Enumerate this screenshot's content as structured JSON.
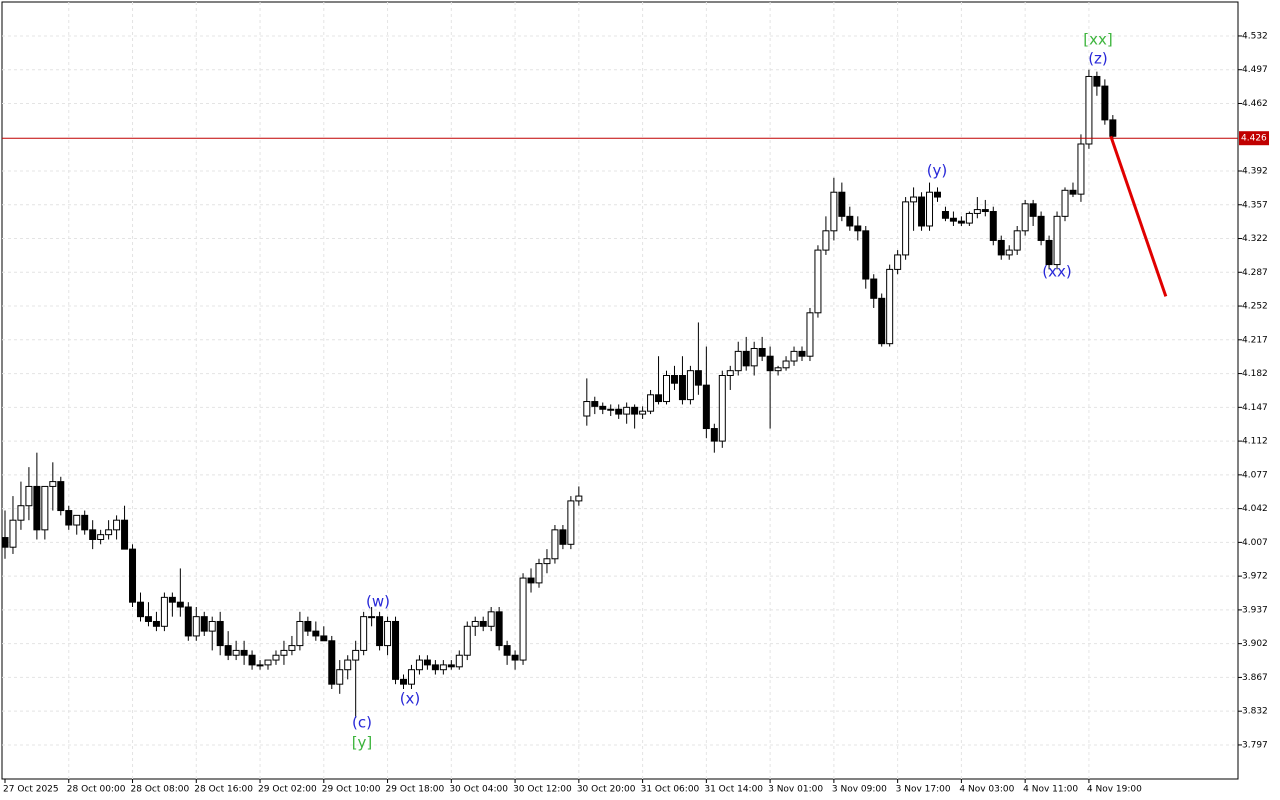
{
  "chart_data": {
    "type": "candlestick",
    "categories": [
      "27 Oct 2025",
      null,
      null,
      null,
      null,
      null,
      null,
      null,
      "28 Oct 00:00",
      null,
      null,
      null,
      null,
      null,
      null,
      null,
      "28 Oct 08:00",
      null,
      null,
      null,
      null,
      null,
      null,
      null,
      "28 Oct 16:00",
      null,
      null,
      null,
      null,
      null,
      null,
      null,
      "29 Oct 02:00",
      null,
      null,
      null,
      null,
      null,
      null,
      null,
      "29 Oct 10:00",
      null,
      null,
      null,
      null,
      null,
      null,
      null,
      "29 Oct 18:00",
      null,
      null,
      null,
      null,
      null,
      null,
      null,
      "30 Oct 04:00",
      null,
      null,
      null,
      null,
      null,
      null,
      null,
      "30 Oct 12:00",
      null,
      null,
      null,
      null,
      null,
      null,
      null,
      "30 Oct 20:00",
      null,
      null,
      null,
      null,
      null,
      null,
      null,
      "31 Oct 06:00",
      null,
      null,
      null,
      null,
      null,
      null,
      null,
      "31 Oct 14:00",
      null,
      null,
      null,
      null,
      null,
      null,
      null,
      "3 Nov 01:00",
      null,
      null,
      null,
      null,
      null,
      null,
      null,
      "3 Nov 09:00",
      null,
      null,
      null,
      null,
      null,
      null,
      null,
      "3 Nov 17:00",
      null,
      null,
      null,
      null,
      null,
      null,
      null,
      "4 Nov 03:00",
      null,
      null,
      null,
      null,
      null,
      null,
      null,
      "4 Nov 11:00",
      null,
      null,
      null,
      null,
      null,
      null,
      null,
      "4 Nov 19:00",
      null,
      null,
      null
    ],
    "open": [
      4.012,
      4.002,
      4.03,
      4.045,
      4.065,
      4.02,
      4.065,
      4.07,
      4.04,
      4.025,
      4.035,
      4.02,
      4.01,
      4.015,
      4.02,
      4.03,
      4.0,
      3.945,
      3.93,
      3.925,
      3.92,
      3.95,
      3.945,
      3.94,
      3.91,
      3.93,
      3.915,
      3.925,
      3.9,
      3.89,
      3.895,
      3.89,
      3.88,
      3.88,
      3.885,
      3.89,
      3.895,
      3.9,
      3.925,
      3.915,
      3.91,
      3.905,
      3.86,
      3.875,
      3.885,
      3.895,
      3.93,
      3.93,
      3.9,
      3.925,
      3.865,
      3.86,
      3.875,
      3.885,
      3.88,
      3.875,
      3.88,
      3.878,
      3.89,
      3.92,
      3.925,
      3.92,
      3.935,
      3.9,
      3.89,
      3.885,
      3.97,
      3.965,
      3.985,
      3.99,
      4.02,
      4.005,
      4.05,
      4.138,
      4.153,
      4.148,
      4.145,
      4.145,
      4.14,
      4.147,
      4.14,
      4.143,
      4.16,
      4.153,
      4.18,
      4.18,
      4.155,
      4.185,
      4.17,
      4.125,
      4.112,
      4.18,
      4.185,
      4.205,
      4.19,
      4.208,
      4.2,
      4.185,
      4.188,
      4.195,
      4.205,
      4.2,
      4.245,
      4.31,
      4.33,
      4.37,
      4.345,
      4.335,
      4.33,
      4.28,
      4.26,
      4.213,
      4.29,
      4.305,
      4.36,
      4.365,
      4.335,
      4.37,
      4.35,
      4.343,
      4.34,
      4.338,
      4.348,
      4.352,
      4.35,
      4.32,
      4.305,
      4.31,
      4.33,
      4.358,
      4.345,
      4.32,
      4.295,
      4.345,
      4.372,
      4.368,
      4.42,
      4.49,
      4.48,
      4.445
    ],
    "high": [
      4.04,
      4.055,
      4.07,
      4.085,
      4.1,
      4.065,
      4.09,
      4.075,
      4.045,
      4.035,
      4.04,
      4.03,
      4.02,
      4.03,
      4.035,
      4.045,
      4.005,
      3.955,
      3.945,
      3.935,
      3.955,
      3.955,
      3.98,
      3.945,
      3.94,
      3.935,
      3.93,
      3.935,
      3.915,
      3.905,
      3.905,
      3.895,
      3.885,
      3.885,
      3.895,
      3.905,
      3.91,
      3.935,
      3.93,
      3.925,
      3.92,
      3.91,
      3.885,
      3.89,
      3.905,
      3.935,
      3.94,
      3.935,
      3.93,
      3.93,
      3.87,
      3.88,
      3.89,
      3.89,
      3.885,
      3.885,
      3.885,
      3.895,
      3.925,
      3.93,
      3.93,
      3.94,
      3.94,
      3.905,
      3.895,
      3.975,
      3.98,
      3.99,
      4.0,
      4.025,
      4.025,
      4.055,
      4.065,
      4.177,
      4.158,
      4.152,
      4.15,
      4.15,
      4.152,
      4.15,
      4.148,
      4.165,
      4.2,
      4.185,
      4.19,
      4.2,
      4.19,
      4.235,
      4.21,
      4.13,
      4.185,
      4.19,
      4.215,
      4.22,
      4.215,
      4.22,
      4.21,
      4.19,
      4.2,
      4.21,
      4.21,
      4.25,
      4.315,
      4.345,
      4.385,
      4.38,
      4.355,
      4.345,
      4.335,
      4.285,
      4.265,
      4.295,
      4.31,
      4.365,
      4.375,
      4.37,
      4.38,
      4.375,
      4.355,
      4.35,
      4.345,
      4.35,
      4.365,
      4.362,
      4.355,
      4.325,
      4.315,
      4.335,
      4.362,
      4.362,
      4.35,
      4.325,
      4.35,
      4.375,
      4.38,
      4.43,
      4.497,
      4.495,
      4.487,
      4.45
    ],
    "low": [
      3.99,
      3.995,
      4.02,
      4.03,
      4.01,
      4.01,
      4.04,
      4.035,
      4.02,
      4.015,
      4.015,
      4.0,
      4.005,
      4.01,
      4.01,
      4.0,
      3.94,
      3.925,
      3.92,
      3.915,
      3.915,
      3.93,
      3.93,
      3.905,
      3.905,
      3.91,
      3.895,
      3.89,
      3.885,
      3.885,
      3.88,
      3.875,
      3.875,
      3.875,
      3.88,
      3.88,
      3.89,
      3.895,
      3.91,
      3.905,
      3.905,
      3.855,
      3.85,
      3.865,
      3.825,
      3.89,
      3.92,
      3.895,
      3.89,
      3.86,
      3.855,
      3.855,
      3.87,
      3.875,
      3.87,
      3.87,
      3.875,
      3.875,
      3.885,
      3.91,
      3.915,
      3.915,
      3.895,
      3.88,
      3.875,
      3.88,
      3.955,
      3.96,
      3.975,
      3.985,
      4.0,
      4.0,
      4.045,
      4.128,
      4.14,
      4.14,
      4.138,
      4.135,
      4.13,
      4.125,
      4.135,
      4.14,
      4.15,
      4.15,
      4.165,
      4.15,
      4.15,
      4.16,
      4.115,
      4.1,
      4.105,
      4.165,
      4.18,
      4.185,
      4.18,
      4.195,
      4.125,
      4.18,
      4.185,
      4.19,
      4.195,
      4.195,
      4.24,
      4.305,
      4.32,
      4.34,
      4.33,
      4.32,
      4.27,
      4.25,
      4.21,
      4.21,
      4.285,
      4.3,
      4.33,
      4.33,
      4.33,
      4.36,
      4.34,
      4.335,
      4.335,
      4.335,
      4.343,
      4.345,
      4.315,
      4.3,
      4.3,
      4.305,
      4.325,
      4.335,
      4.315,
      4.29,
      4.29,
      4.34,
      4.365,
      4.36,
      4.415,
      4.47,
      4.44,
      4.42
    ],
    "close": [
      4.002,
      4.03,
      4.045,
      4.065,
      4.02,
      4.065,
      4.07,
      4.04,
      4.025,
      4.035,
      4.02,
      4.01,
      4.015,
      4.02,
      4.03,
      4.0,
      3.945,
      3.93,
      3.925,
      3.92,
      3.95,
      3.945,
      3.94,
      3.91,
      3.93,
      3.915,
      3.925,
      3.9,
      3.89,
      3.895,
      3.89,
      3.88,
      3.88,
      3.885,
      3.89,
      3.895,
      3.9,
      3.925,
      3.915,
      3.91,
      3.905,
      3.86,
      3.875,
      3.885,
      3.895,
      3.93,
      3.93,
      3.9,
      3.925,
      3.865,
      3.86,
      3.875,
      3.885,
      3.88,
      3.875,
      3.88,
      3.878,
      3.89,
      3.92,
      3.925,
      3.92,
      3.935,
      3.9,
      3.89,
      3.885,
      3.97,
      3.965,
      3.985,
      3.99,
      4.02,
      4.005,
      4.05,
      4.055,
      4.153,
      4.148,
      4.145,
      4.145,
      4.14,
      4.147,
      4.14,
      4.143,
      4.16,
      4.153,
      4.18,
      4.172,
      4.155,
      4.185,
      4.17,
      4.125,
      4.112,
      4.18,
      4.185,
      4.205,
      4.19,
      4.208,
      4.2,
      4.185,
      4.188,
      4.195,
      4.205,
      4.2,
      4.245,
      4.31,
      4.33,
      4.37,
      4.345,
      4.335,
      4.33,
      4.28,
      4.26,
      4.213,
      4.29,
      4.305,
      4.36,
      4.365,
      4.335,
      4.37,
      4.365,
      4.343,
      4.34,
      4.338,
      4.348,
      4.352,
      4.35,
      4.32,
      4.305,
      4.31,
      4.33,
      4.358,
      4.345,
      4.32,
      4.295,
      4.345,
      4.372,
      4.368,
      4.42,
      4.49,
      4.48,
      4.445,
      4.428
    ],
    "up_color": "#ffffff",
    "down_color": "#000000",
    "ylim": [
      3.7617,
      4.5672
    ],
    "yticks": [
      3.797,
      3.832,
      3.867,
      3.902,
      3.937,
      3.972,
      4.007,
      4.042,
      4.077,
      4.112,
      4.147,
      4.182,
      4.217,
      4.252,
      4.287,
      4.322,
      4.357,
      4.392,
      4.462,
      4.497,
      4.532
    ],
    "grid": true,
    "price_line": {
      "value": 4.426,
      "color": "#c00000"
    },
    "forecast": {
      "values": [
        4.428,
        4.262
      ],
      "color": "#e00000"
    },
    "annotations": [
      {
        "text": "[xx]",
        "color": "#3cb43c"
      },
      {
        "text": "(z)",
        "color": "#2828d8"
      },
      {
        "text": "(y)",
        "color": "#2828d8"
      },
      {
        "text": "(xx)",
        "color": "#2828d8"
      },
      {
        "text": "(w)",
        "color": "#2828d8"
      },
      {
        "text": "(x)",
        "color": "#2828d8"
      },
      {
        "text": "(c)",
        "color": "#2828d8"
      },
      {
        "text": "[y]",
        "color": "#3cb43c"
      }
    ]
  }
}
